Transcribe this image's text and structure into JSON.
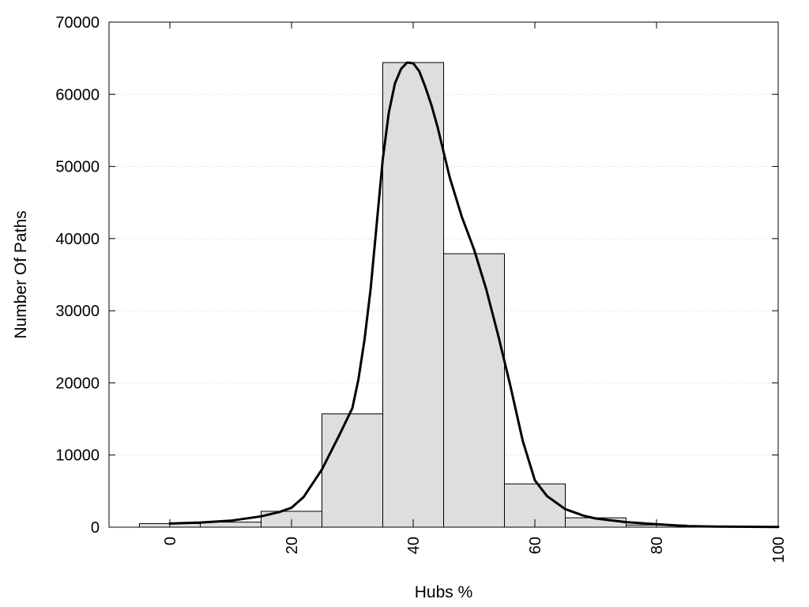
{
  "chart_data": {
    "type": "bar",
    "xlabel": "Hubs %",
    "ylabel": "Number Of Paths",
    "xlim": [
      -10,
      100
    ],
    "ylim": [
      0,
      70000
    ],
    "x_ticks": [
      0,
      20,
      40,
      60,
      80,
      100
    ],
    "y_ticks": [
      0,
      10000,
      20000,
      30000,
      40000,
      50000,
      60000,
      70000
    ],
    "grid": "horizontal dotted",
    "bar_color": "#dedede",
    "bin_width": 10,
    "bins": [
      {
        "x": 0,
        "value": 500
      },
      {
        "x": 10,
        "value": 700
      },
      {
        "x": 20,
        "value": 2200
      },
      {
        "x": 30,
        "value": 15700
      },
      {
        "x": 40,
        "value": 64400
      },
      {
        "x": 50,
        "value": 37900
      },
      {
        "x": 60,
        "value": 6000
      },
      {
        "x": 70,
        "value": 1300
      },
      {
        "x": 80,
        "value": 300
      },
      {
        "x": 90,
        "value": 50
      }
    ],
    "curve": {
      "type": "line",
      "color": "#000000",
      "x": [
        0,
        5,
        10,
        15,
        18,
        20,
        22,
        25,
        28,
        30,
        31,
        32,
        33,
        34,
        35,
        36,
        37,
        38,
        39,
        40,
        41,
        42,
        43,
        44,
        45,
        46,
        48,
        50,
        52,
        54,
        56,
        58,
        60,
        62,
        65,
        68,
        70,
        75,
        80,
        85,
        90,
        95,
        100
      ],
      "y": [
        500,
        650,
        900,
        1500,
        2100,
        2700,
        4200,
        8000,
        13000,
        16500,
        20500,
        26000,
        33000,
        42000,
        51000,
        57500,
        61500,
        63500,
        64400,
        64300,
        63200,
        61000,
        58500,
        55500,
        52000,
        48500,
        43000,
        38500,
        33000,
        26500,
        19500,
        12000,
        6500,
        4300,
        2500,
        1600,
        1200,
        700,
        400,
        150,
        80,
        50,
        30
      ]
    }
  }
}
